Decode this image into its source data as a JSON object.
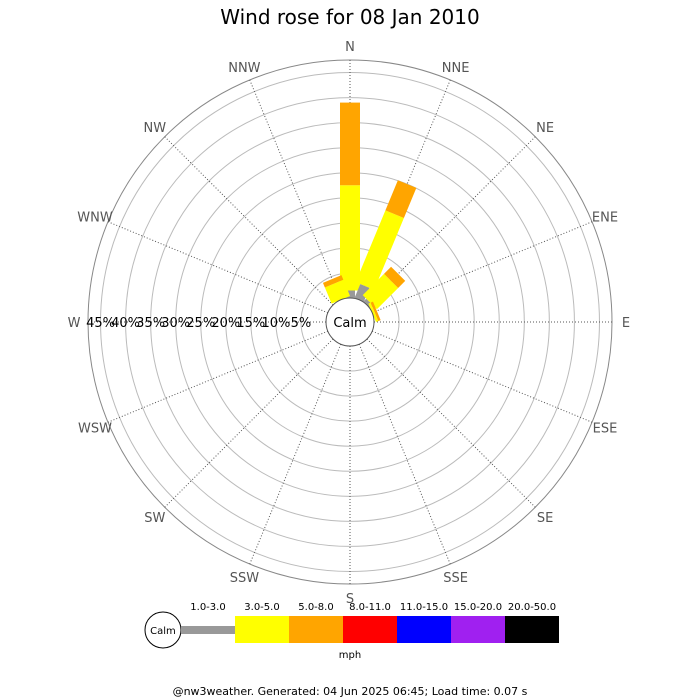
{
  "chart_data": {
    "type": "wind-rose",
    "title": "Wind rose for 08 Jan 2010",
    "calm_label": "Calm",
    "directions": [
      "N",
      "NNE",
      "NE",
      "ENE",
      "E",
      "ESE",
      "SE",
      "SSE",
      "S",
      "SSW",
      "SW",
      "WSW",
      "W",
      "WNW",
      "NW",
      "NNW"
    ],
    "radial_ticks": [
      "5%",
      "10%",
      "15%",
      "20%",
      "25%",
      "30%",
      "35%",
      "40%",
      "45%"
    ],
    "radial_max": 47.5,
    "speed_bins": [
      "1.0-3.0",
      "3.0-5.0",
      "5.0-8.0",
      "8.0-11.0",
      "11.0-15.0",
      "15.0-20.0",
      "20.0-50.0"
    ],
    "bin_colors": [
      "#999999",
      "#ffff00",
      "#ffa500",
      "#ff0000",
      "#0000ff",
      "#a020f0",
      "#000000"
    ],
    "units": "mph",
    "grid": true,
    "series": [
      {
        "name": "1.0-3.0",
        "values": [
          1.5,
          3.0,
          0.8,
          0,
          0,
          0,
          0,
          0,
          0,
          0,
          0,
          0,
          0,
          0,
          0,
          0
        ]
      },
      {
        "name": "3.0-5.0",
        "values": [
          21.0,
          15.5,
          6.0,
          0.5,
          0,
          0,
          0,
          0,
          0,
          0,
          0,
          0,
          0,
          0,
          0,
          3.5
        ]
      },
      {
        "name": "5.0-8.0",
        "values": [
          16.5,
          6.5,
          2.0,
          0.5,
          0,
          0,
          0,
          0,
          0,
          0,
          0,
          0,
          0,
          0,
          0,
          1.0
        ]
      },
      {
        "name": "8.0-11.0",
        "values": [
          0,
          0,
          0,
          0,
          0,
          0,
          0,
          0,
          0,
          0,
          0,
          0,
          0,
          0,
          0,
          0
        ]
      },
      {
        "name": "11.0-15.0",
        "values": [
          0,
          0,
          0,
          0,
          0,
          0,
          0,
          0,
          0,
          0,
          0,
          0,
          0,
          0,
          0,
          0
        ]
      },
      {
        "name": "15.0-20.0",
        "values": [
          0,
          0,
          0,
          0,
          0,
          0,
          0,
          0,
          0,
          0,
          0,
          0,
          0,
          0,
          0,
          0
        ]
      },
      {
        "name": "20.0-50.0",
        "values": [
          0,
          0,
          0,
          0,
          0,
          0,
          0,
          0,
          0,
          0,
          0,
          0,
          0,
          0,
          0,
          0
        ]
      }
    ]
  },
  "footer": "@nw3weather. Generated: 04 Jun 2025 06:45; Load time: 0.07 s"
}
